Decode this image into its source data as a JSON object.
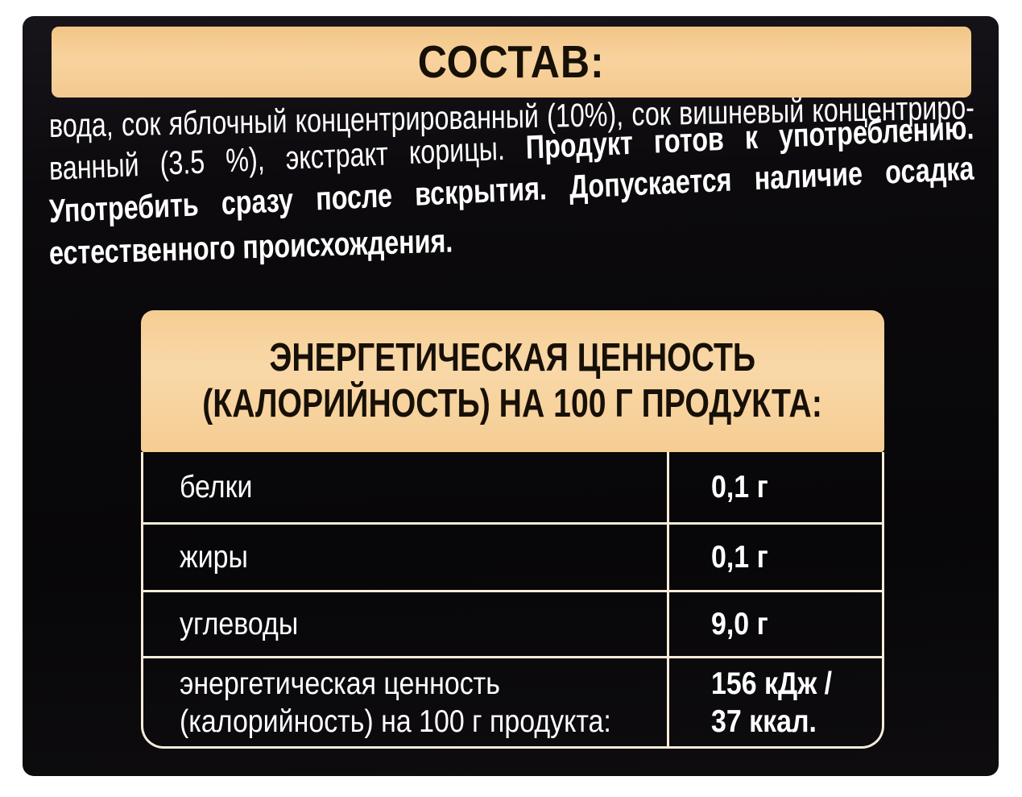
{
  "colors": {
    "page_background": "#ffffff",
    "label_background": "#0a090c",
    "cream_band": "#f5cb91",
    "cream_header": "#f8d4a0",
    "table_lines": "#f6ecd9",
    "text_on_cream": "#171007",
    "text_on_black": "#ffffff"
  },
  "composition": {
    "title": "СОСТАВ:",
    "lines": [
      {
        "regular": "вода, сок яблочный концентрированный (10%), сок вишневый концентриро-",
        "bold": ""
      },
      {
        "regular": "ванный (3.5 %), экстракт корицы.",
        "bold": "Продукт готов к употреблению."
      },
      {
        "regular": "",
        "bold": "Употребить сразу после вскрытия. Допускается наличие осадка"
      },
      {
        "regular": "",
        "bold": "естественного происхождения."
      }
    ]
  },
  "nutrition": {
    "header_line1": "ЭНЕРГЕТИЧЕСКАЯ ЦЕННОСТЬ",
    "header_line2": "(КАЛОРИЙНОСТЬ) НА 100 Г ПРОДУКТА:",
    "rows": [
      {
        "label": "белки",
        "value": "0,1 г"
      },
      {
        "label": "жиры",
        "value": "0,1 г"
      },
      {
        "label": "углеводы",
        "value": "9,0 г"
      },
      {
        "label_line1": "энергетическая ценность",
        "label_line2": "(калорийность) на 100 г продукта:",
        "value_line1": "156 кДж /",
        "value_line2": "37 ккал."
      }
    ]
  }
}
